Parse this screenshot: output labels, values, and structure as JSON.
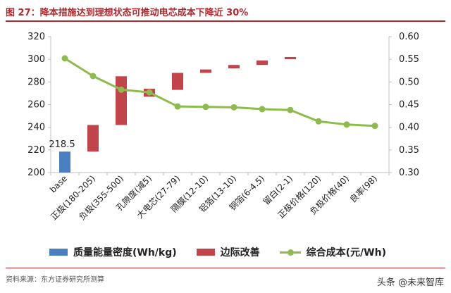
{
  "figure": {
    "title": "图 27：降本措施达到理想状态可推动电芯成本下降近 30%",
    "source": "资料来源：东方证券研究所测算",
    "watermark": "头条 @未来智库"
  },
  "colors": {
    "title": "#b3282d",
    "density_bar": "#4a7fc1",
    "improvement_bar": "#c0444a",
    "cost_line": "#8dbb4c",
    "axis": "#bfbfbf",
    "text": "#222222"
  },
  "chart_data": {
    "type": "bar+line",
    "categories": [
      "base",
      "正极(180-205)",
      "负极(355-500)",
      "孔隙度(减5)",
      "大电芯(27-79)",
      "隔膜(12-10)",
      "铝箔(13-10)",
      "铜箔(6-4.5)",
      "留白(2-1)",
      "正极价格(120)",
      "负极价格(40)",
      "良率(98)"
    ],
    "left_axis": {
      "min": 200,
      "max": 320,
      "step": 20,
      "ticks": [
        "200",
        "220",
        "240",
        "260",
        "280",
        "300",
        "320"
      ]
    },
    "right_axis": {
      "min": 0.3,
      "max": 0.6,
      "step": 0.05,
      "ticks": [
        "0.30",
        "0.35",
        "0.40",
        "0.45",
        "0.50",
        "0.55",
        "0.60"
      ]
    },
    "density_bars": [
      {
        "category": "base",
        "value": 218.5,
        "label": "218.5"
      }
    ],
    "improvement_bars": [
      {
        "category": "正极(180-205)",
        "low": 218.5,
        "high": 242
      },
      {
        "category": "负极(355-500)",
        "low": 242,
        "high": 285
      },
      {
        "category": "孔隙度(减5)",
        "low": 267,
        "high": 274
      },
      {
        "category": "大电芯(27-79)",
        "low": 273,
        "high": 288
      },
      {
        "category": "隔膜(12-10)",
        "low": 288,
        "high": 291
      },
      {
        "category": "铝箔(13-10)",
        "low": 292,
        "high": 295
      },
      {
        "category": "铜箔(6-4.5)",
        "low": 295,
        "high": 299
      },
      {
        "category": "留白(2-1)",
        "low": 300,
        "high": 302
      }
    ],
    "cost_line": {
      "name": "综合成本(元/Wh)",
      "values": [
        0.552,
        0.513,
        0.483,
        0.477,
        0.446,
        0.445,
        0.444,
        0.44,
        0.438,
        0.413,
        0.406,
        0.403
      ]
    },
    "legend": [
      "质量能量密度(Wh/kg)",
      "边际改善",
      "综合成本(元/Wh)"
    ]
  }
}
